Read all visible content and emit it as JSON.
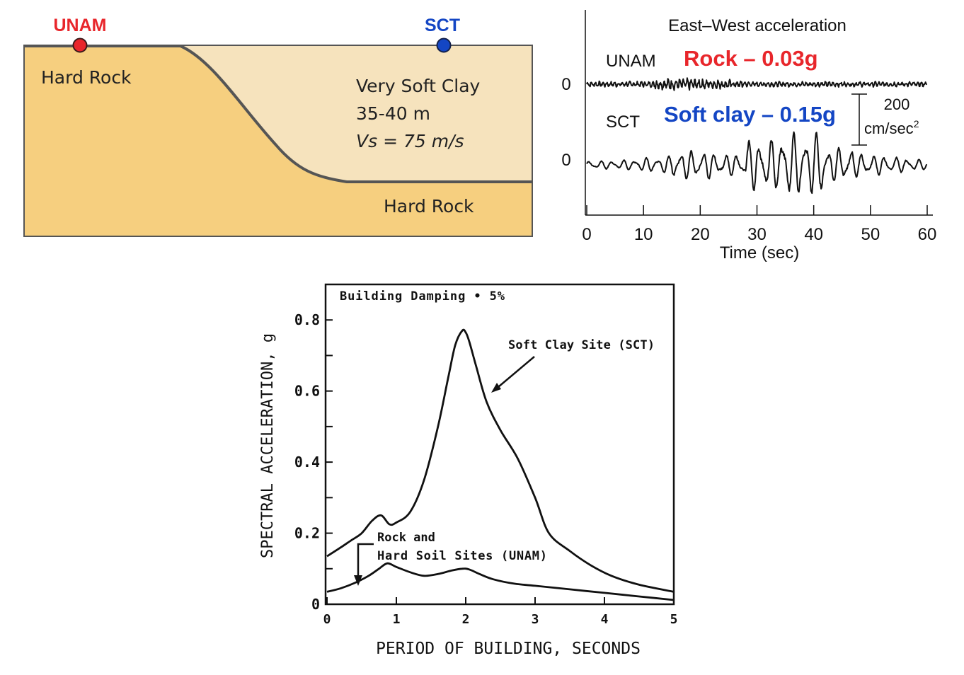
{
  "soil_profile": {
    "station_unam": "UNAM",
    "station_sct": "SCT",
    "left_layer": "Hard Rock",
    "clay_lines": [
      "Very Soft Clay",
      "35-40 m",
      "Vs = 75 m/s"
    ],
    "bottom_layer": "Hard Rock",
    "colors": {
      "rock": "#f6cf7f",
      "clay": "#f6e3bd",
      "unam_marker": "#e8262b",
      "sct_marker": "#1446c4"
    }
  },
  "chart_data": [
    {
      "type": "line",
      "title": "East–West acceleration",
      "xlabel": "Time (sec)",
      "ylabel": "",
      "xlim": [
        0,
        60
      ],
      "x_ticks": [
        "0",
        "10",
        "20",
        "30",
        "40",
        "50",
        "60"
      ],
      "y_zero_labels": [
        "0",
        "0"
      ],
      "scale_bar": {
        "value": "200",
        "unit": "cm/sec",
        "sup": "2"
      },
      "series": [
        {
          "name": "UNAM",
          "annotation": "Rock – 0.03g",
          "color": "#e8262b",
          "peak_g": 0.03
        },
        {
          "name": "SCT",
          "annotation": "Soft clay – 0.15g",
          "color": "#1446c4",
          "peak_g": 0.15
        }
      ]
    },
    {
      "type": "line",
      "title": "",
      "annotation": "Building Damping • 5%",
      "xlabel": "PERIOD OF BUILDING, SECONDS",
      "ylabel": "SPECTRAL ACCELERATION, g",
      "xlim": [
        0,
        5
      ],
      "ylim": [
        0,
        0.9
      ],
      "x_ticks": [
        "0",
        "1",
        "2",
        "3",
        "4",
        "5"
      ],
      "y_ticks": [
        "0",
        "0.2",
        "0.4",
        "0.6",
        "0.8"
      ],
      "series": [
        {
          "name": "Soft Clay Site (SCT)",
          "x": [
            0,
            0.2,
            0.35,
            0.5,
            0.65,
            0.78,
            0.9,
            1.0,
            1.2,
            1.4,
            1.6,
            1.75,
            1.85,
            1.95,
            2.0,
            2.05,
            2.15,
            2.3,
            2.5,
            2.75,
            3.0,
            3.2,
            3.5,
            3.8,
            4.1,
            4.5,
            5.0
          ],
          "y": [
            0.135,
            0.16,
            0.18,
            0.2,
            0.235,
            0.25,
            0.225,
            0.23,
            0.26,
            0.35,
            0.5,
            0.64,
            0.73,
            0.77,
            0.765,
            0.74,
            0.67,
            0.57,
            0.49,
            0.41,
            0.3,
            0.2,
            0.15,
            0.11,
            0.08,
            0.055,
            0.035
          ]
        },
        {
          "name": "Rock and Hard Soil Sites (UNAM)",
          "x": [
            0,
            0.2,
            0.4,
            0.6,
            0.75,
            0.87,
            1.0,
            1.2,
            1.4,
            1.6,
            1.8,
            1.95,
            2.05,
            2.2,
            2.4,
            2.7,
            3.0,
            3.5,
            4.0,
            4.5,
            5.0
          ],
          "y": [
            0.035,
            0.045,
            0.06,
            0.08,
            0.1,
            0.115,
            0.105,
            0.09,
            0.08,
            0.085,
            0.095,
            0.1,
            0.098,
            0.085,
            0.07,
            0.058,
            0.052,
            0.042,
            0.032,
            0.022,
            0.012
          ]
        }
      ]
    }
  ]
}
